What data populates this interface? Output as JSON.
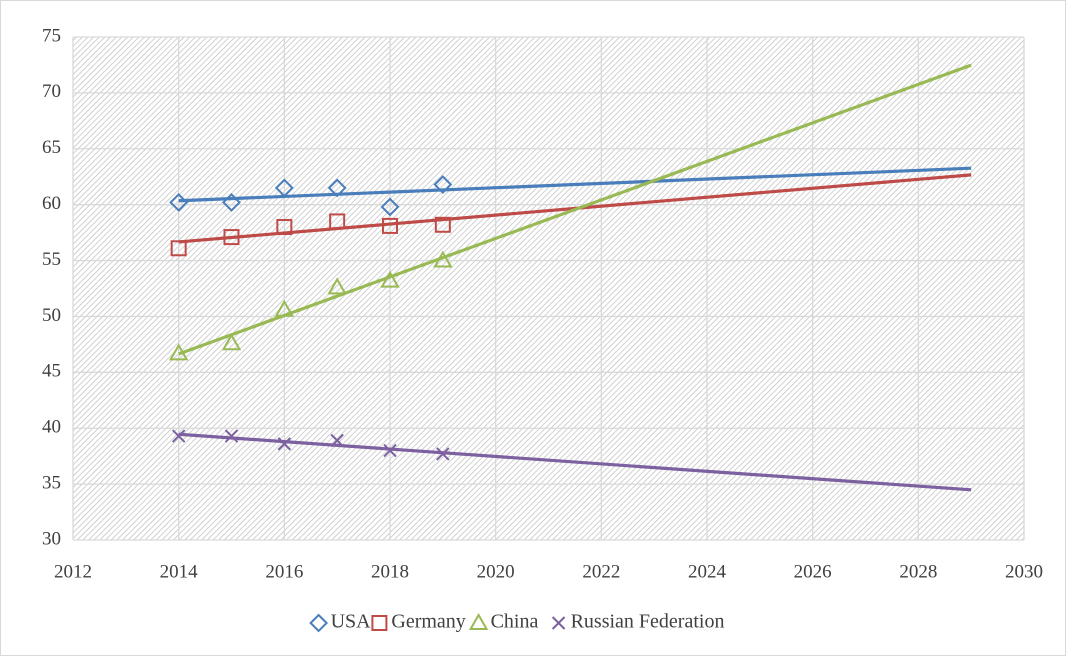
{
  "chart_data": {
    "type": "scatter",
    "x": [
      2014,
      2015,
      2016,
      2017,
      2018,
      2019
    ],
    "series": [
      {
        "name": "USA",
        "color": "#4a7ebb",
        "marker": "diamond",
        "values": [
          60.2,
          60.2,
          61.5,
          61.5,
          59.8,
          61.8
        ]
      },
      {
        "name": "Germany",
        "color": "#be4b48",
        "marker": "square",
        "values": [
          56.1,
          57.1,
          58.0,
          58.5,
          58.1,
          58.2
        ]
      },
      {
        "name": "China",
        "color": "#98b954",
        "marker": "triangle",
        "values": [
          46.7,
          47.6,
          50.6,
          52.6,
          53.2,
          55.0
        ]
      },
      {
        "name": "Russian Federation",
        "color": "#7d60a0",
        "marker": "x",
        "values": [
          39.3,
          39.3,
          38.6,
          38.9,
          38.0,
          37.7
        ]
      }
    ],
    "trendline": "linear",
    "trendline_x": [
      2014,
      2029
    ],
    "xlim": [
      2012,
      2030
    ],
    "xticks": [
      2012,
      2014,
      2016,
      2018,
      2020,
      2022,
      2024,
      2026,
      2028,
      2030
    ],
    "ylim": [
      30,
      75
    ],
    "yticks": [
      30,
      35,
      40,
      45,
      50,
      55,
      60,
      65,
      70,
      75
    ],
    "grid": true,
    "legend": "bottom"
  }
}
